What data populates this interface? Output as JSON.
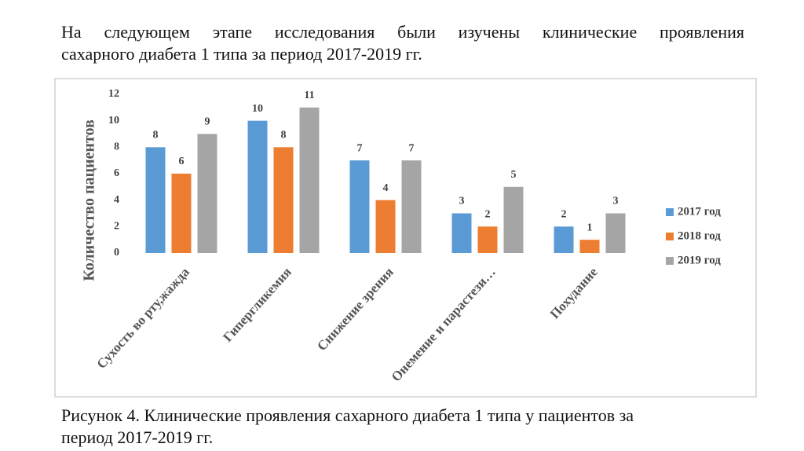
{
  "intro": [
    "На следующем этапе исследования были изучены клинические проявления",
    "сахарного диабета 1 типа за период 2017-2019 гг."
  ],
  "chart_data": {
    "type": "bar",
    "y_axis_label": "Количество пациентов",
    "categories": [
      "Сухость во рту,жажда",
      "Гипергликемия",
      "Снижение зрения",
      "Онемение и парастези…",
      "Похудание"
    ],
    "series": [
      {
        "name": "2017 год",
        "color": "#5b9bd5",
        "values": [
          8,
          10,
          7,
          3,
          2
        ]
      },
      {
        "name": "2018 год",
        "color": "#ed7d31",
        "values": [
          6,
          8,
          4,
          2,
          1
        ]
      },
      {
        "name": "2019 год",
        "color": "#a5a5a5",
        "values": [
          9,
          11,
          7,
          5,
          3
        ]
      }
    ],
    "ylim": [
      0,
      12
    ],
    "yticks": [
      0,
      2,
      4,
      6,
      8,
      10,
      12
    ],
    "grid": false,
    "legend": "right"
  },
  "caption": [
    "Рисунок 4. Клинические проявления сахарного диабета 1 типа у пациентов за",
    "период 2017-2019 гг."
  ]
}
